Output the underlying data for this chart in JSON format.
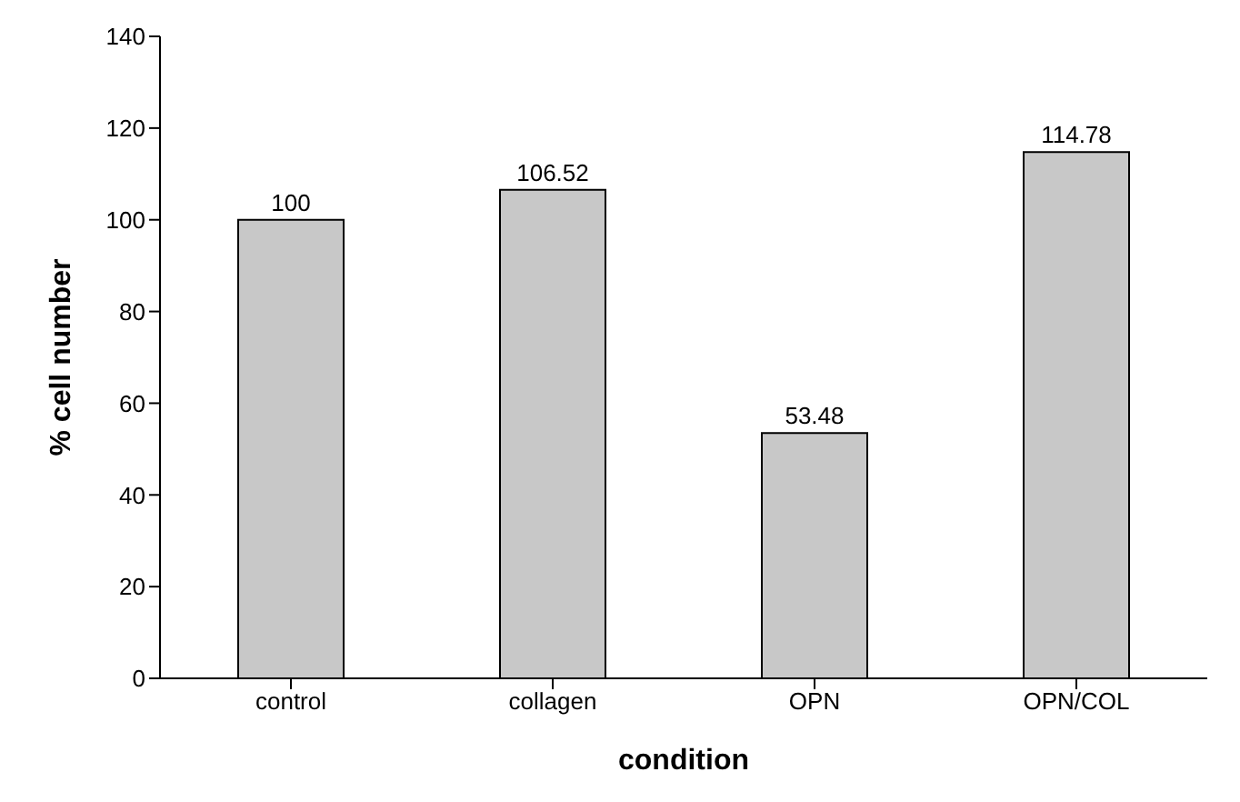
{
  "chart_data": {
    "type": "bar",
    "xlabel": "condition",
    "ylabel": "% cell number",
    "categories": [
      "control",
      "collagen",
      "OPN",
      "OPN/COL"
    ],
    "values": [
      100,
      106.52,
      53.48,
      114.78
    ],
    "color": "#c8c8c8",
    "ylim": [
      0,
      140
    ],
    "yticks": [
      0,
      20,
      40,
      60,
      80,
      100,
      120,
      140
    ],
    "data_labels": true
  }
}
